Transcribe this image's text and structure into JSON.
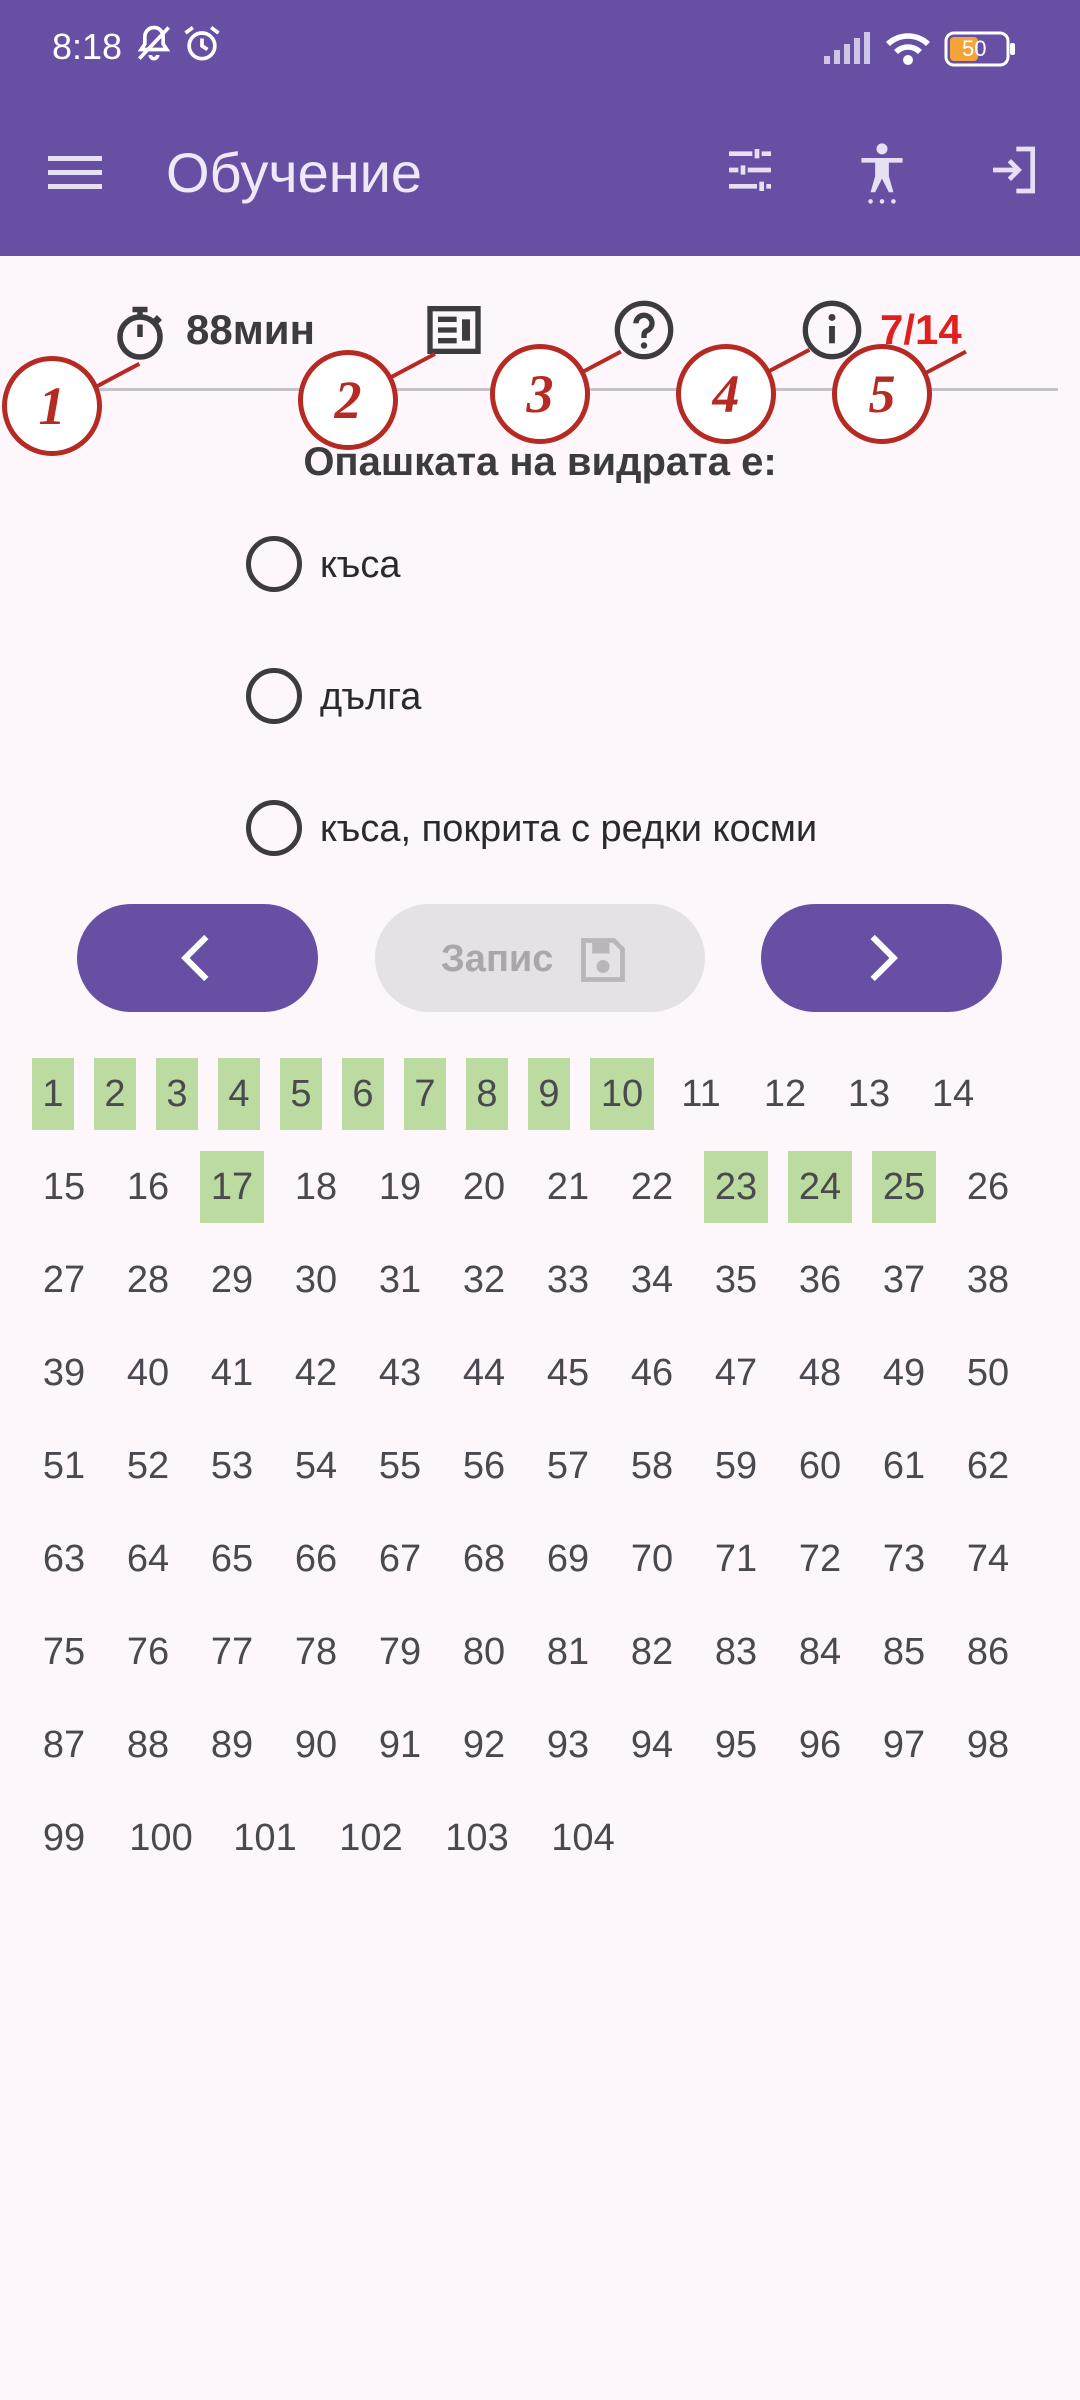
{
  "status_bar": {
    "time": "8:18",
    "battery": "50"
  },
  "app_bar": {
    "title": "Обучение",
    "icons": [
      "menu-icon",
      "tune-icon",
      "accessibility-icon",
      "exit-icon"
    ]
  },
  "info_bar": {
    "timer": "88мин",
    "progress": "7/14",
    "icons": [
      "stopwatch-icon",
      "article-icon",
      "help-icon",
      "info-icon"
    ],
    "callouts": [
      "1",
      "2",
      "3",
      "4",
      "5"
    ]
  },
  "question": {
    "text": "Опашката на видрата е:",
    "options": [
      "къса",
      "дълга",
      "къса, покрита с редки косми"
    ]
  },
  "buttons": {
    "prev_icon": "chevron-left-icon",
    "save_label": "Запис",
    "save_icon": "save-icon",
    "next_icon": "chevron-right-icon"
  },
  "question_numbers": {
    "labels": [
      "1",
      "2",
      "3",
      "4",
      "5",
      "6",
      "7",
      "8",
      "9",
      "10",
      "11",
      "12",
      "13",
      "14",
      "15",
      "16",
      "17",
      "18",
      "19",
      "20",
      "21",
      "22",
      "23",
      "24",
      "25",
      "26",
      "27",
      "28",
      "29",
      "30",
      "31",
      "32",
      "33",
      "34",
      "35",
      "36",
      "37",
      "38",
      "39",
      "40",
      "41",
      "42",
      "43",
      "44",
      "45",
      "46",
      "47",
      "48",
      "49",
      "50",
      "51",
      "52",
      "53",
      "54",
      "55",
      "56",
      "57",
      "58",
      "59",
      "60",
      "61",
      "62",
      "63",
      "64",
      "65",
      "66",
      "67",
      "68",
      "69",
      "70",
      "71",
      "72",
      "73",
      "74",
      "75",
      "76",
      "77",
      "78",
      "79",
      "80",
      "81",
      "82",
      "83",
      "84",
      "85",
      "86",
      "87",
      "88",
      "89",
      "90",
      "91",
      "92",
      "93",
      "94",
      "95",
      "96",
      "97",
      "98",
      "99",
      "100",
      "101",
      "102",
      "103",
      "104"
    ],
    "answered": [
      1,
      2,
      3,
      4,
      5,
      6,
      7,
      8,
      9,
      10,
      17,
      23,
      24,
      25
    ]
  },
  "colors": {
    "primary": "#6750a4",
    "answered": "#bcdba0",
    "progress": "#e01f1f",
    "callout": "#b52a22"
  }
}
